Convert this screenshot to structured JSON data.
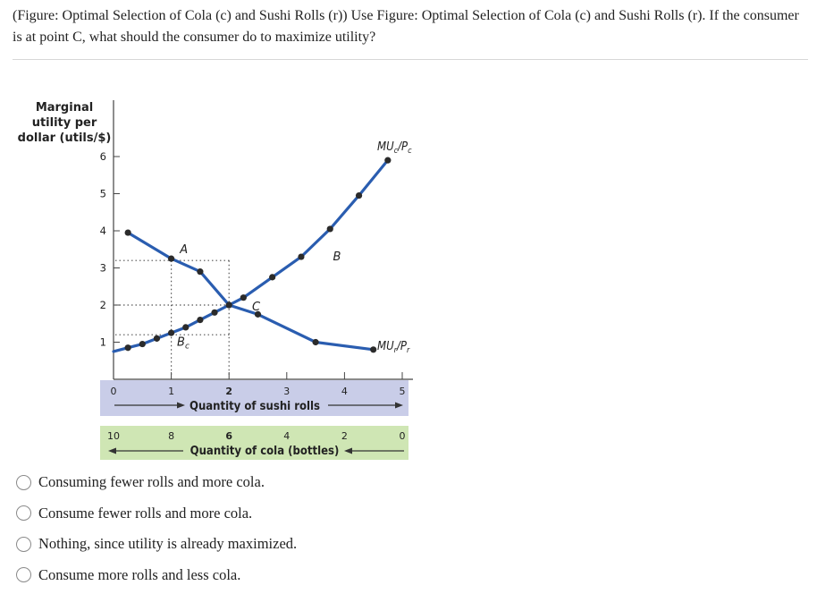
{
  "question": "(Figure: Optimal Selection of Cola (c) and Sushi Rolls (r)) Use Figure: Optimal Selection of Cola (c) and Sushi Rolls (r). If the consumer is at point C, what should the consumer do to maximize utility?",
  "colors": {
    "curve": "#2a5db0",
    "dot": "#2b2b2b",
    "sushi_band": "#c9cde8",
    "cola_band": "#cfe6b4"
  },
  "chart_data": {
    "type": "line",
    "ylabel": [
      "Marginal",
      "utility per",
      "dollar (utils/$)"
    ],
    "ylim": [
      0,
      6
    ],
    "yticks": [
      "1",
      "2",
      "3",
      "4",
      "5",
      "6"
    ],
    "xlim": [
      0,
      5
    ],
    "sushi_axis": {
      "label": "Quantity of sushi rolls",
      "ticks": [
        {
          "v": 0,
          "t": "0"
        },
        {
          "v": 1,
          "t": "1"
        },
        {
          "v": 2,
          "t": "2"
        },
        {
          "v": 3,
          "t": "3"
        },
        {
          "v": 4,
          "t": "4"
        },
        {
          "v": 5,
          "t": "5"
        }
      ]
    },
    "cola_axis": {
      "label": "Quantity of cola (bottles)",
      "ticks": [
        {
          "v": 0,
          "t": "10"
        },
        {
          "v": 1,
          "t": "8"
        },
        {
          "v": 2,
          "t": "6"
        },
        {
          "v": 3,
          "t": "4"
        },
        {
          "v": 4,
          "t": "2"
        },
        {
          "v": 5,
          "t": "0"
        }
      ]
    },
    "series": [
      {
        "name": "MU_c/P_c",
        "label_main": "MU",
        "label_sub": "c",
        "label_den": "/P",
        "label_den_sub": "c",
        "points": [
          [
            0,
            0.75
          ],
          [
            0.25,
            0.85
          ],
          [
            0.5,
            0.95
          ],
          [
            0.75,
            1.1
          ],
          [
            1,
            1.25
          ],
          [
            1.25,
            1.4
          ],
          [
            1.5,
            1.6
          ],
          [
            1.75,
            1.8
          ],
          [
            2,
            2
          ],
          [
            2.25,
            2.2
          ],
          [
            2.75,
            2.75
          ],
          [
            3.25,
            3.3
          ],
          [
            3.75,
            4.05
          ],
          [
            4.25,
            4.95
          ],
          [
            4.75,
            5.9
          ]
        ]
      },
      {
        "name": "MU_r/P_r",
        "label_main": "MU",
        "label_sub": "r",
        "label_den": "/P",
        "label_den_sub": "r",
        "points": [
          [
            0.25,
            3.95
          ],
          [
            1,
            3.25
          ],
          [
            1.5,
            2.9
          ],
          [
            2,
            2
          ],
          [
            2.5,
            1.75
          ],
          [
            3.5,
            1.0
          ],
          [
            4.5,
            0.8
          ]
        ]
      }
    ],
    "reference_lines": {
      "dotted_y": [
        3.2,
        2.0,
        1.2
      ],
      "dotted_x": [
        1.0,
        2.0
      ]
    },
    "annotations": [
      {
        "text": "A",
        "x": 1.15,
        "y": 3.5
      },
      {
        "text": "B",
        "x": 3.8,
        "y": 3.3
      },
      {
        "text": "C",
        "x": 2.4,
        "y": 1.95
      },
      {
        "text": "B",
        "sub": "c",
        "x": 1.1,
        "y": 1.0
      }
    ]
  },
  "options": [
    "Consuming fewer rolls and more cola.",
    "Consume fewer rolls and more cola.",
    "Nothing, since utility is already maximized.",
    "Consume more rolls and less cola."
  ]
}
